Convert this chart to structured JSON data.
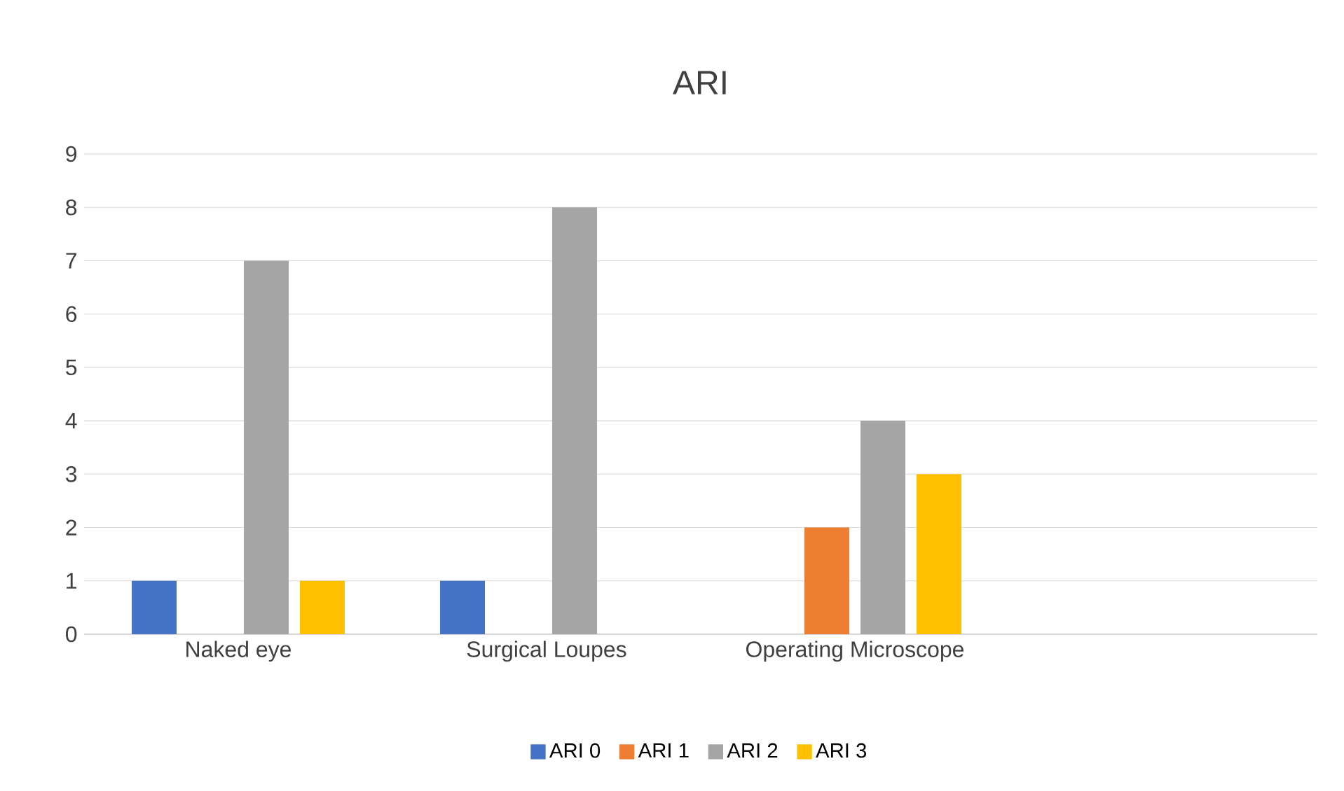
{
  "chart_data": {
    "type": "bar",
    "title": "ARI",
    "categories": [
      "Naked eye",
      "Surgical Loupes",
      "Operating Microscope",
      null
    ],
    "series": [
      {
        "name": "ARI 0",
        "color": "#4472c4",
        "values": [
          1,
          1,
          null,
          null
        ]
      },
      {
        "name": "ARI 1",
        "color": "#ed7d31",
        "values": [
          null,
          null,
          2,
          null
        ]
      },
      {
        "name": "ARI 2",
        "color": "#a5a5a5",
        "values": [
          7,
          8,
          4,
          null
        ]
      },
      {
        "name": "ARI 3",
        "color": "#ffc000",
        "values": [
          1,
          null,
          3,
          null
        ]
      }
    ],
    "ylim": [
      0,
      9
    ],
    "yticks": [
      0,
      1,
      2,
      3,
      4,
      5,
      6,
      7,
      8,
      9
    ],
    "grid": "y",
    "legend": "bottom"
  }
}
